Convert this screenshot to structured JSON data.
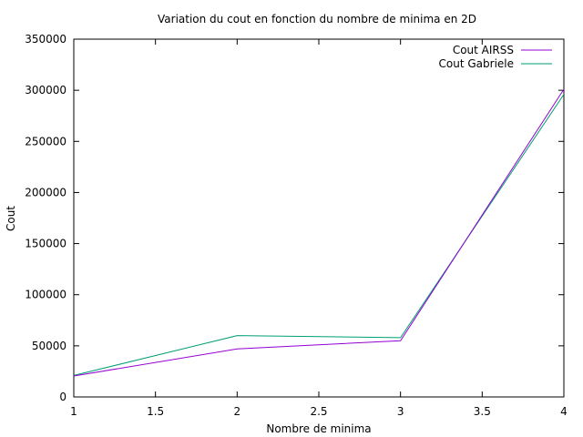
{
  "chart_data": {
    "type": "line",
    "title": "Variation du cout en fonction du nombre de minima en 2D",
    "xlabel": "Nombre de minima",
    "ylabel": "Cout",
    "xlim": [
      1,
      4
    ],
    "ylim": [
      0,
      350000
    ],
    "xticks": [
      "1",
      "1.5",
      "2",
      "2.5",
      "3",
      "3.5",
      "4"
    ],
    "yticks": [
      "0",
      "50000",
      "100000",
      "150000",
      "200000",
      "250000",
      "300000",
      "350000"
    ],
    "grid": false,
    "legend_position": "top-right",
    "x": [
      1,
      2,
      3,
      4
    ],
    "series": [
      {
        "name": "Cout AIRSS",
        "color": "#9400d3",
        "values": [
          20500,
          47000,
          55000,
          301000
        ]
      },
      {
        "name": "Cout Gabriele",
        "color": "#009e73",
        "values": [
          21000,
          60000,
          58000,
          296000
        ]
      }
    ]
  }
}
